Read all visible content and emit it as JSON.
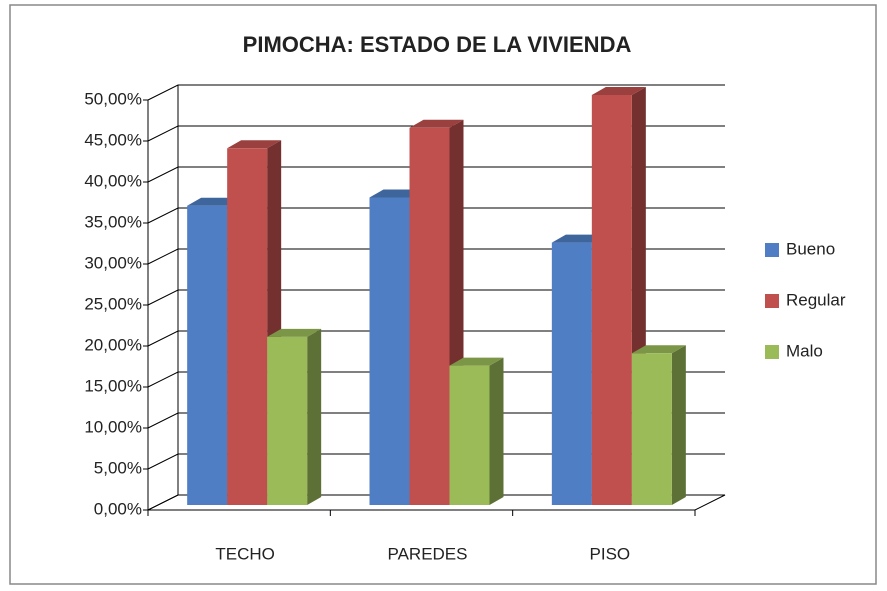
{
  "chart_data": {
    "type": "bar3d",
    "title": "PIMOCHA: ESTADO DE LA VIVIENDA",
    "categories": [
      "TECHO",
      "PAREDES",
      "PISO"
    ],
    "series": [
      {
        "name": "Bueno",
        "color": "#4f7ec4",
        "values": [
          36.5,
          37.5,
          32
        ]
      },
      {
        "name": "Regular",
        "color": "#c0504d",
        "values": [
          43.5,
          46,
          50
        ]
      },
      {
        "name": "Malo",
        "color": "#9bbb59",
        "values": [
          20.5,
          17,
          18.5
        ]
      }
    ],
    "ylim": [
      0,
      50
    ],
    "yticks": [
      {
        "value": 0,
        "label": "0,00%"
      },
      {
        "value": 5,
        "label": "5,00%"
      },
      {
        "value": 10,
        "label": "10,00%"
      },
      {
        "value": 15,
        "label": "15,00%"
      },
      {
        "value": 20,
        "label": "20,00%"
      },
      {
        "value": 25,
        "label": "25,00%"
      },
      {
        "value": 30,
        "label": "30,00%"
      },
      {
        "value": 35,
        "label": "35,00%"
      },
      {
        "value": 40,
        "label": "40,00%"
      },
      {
        "value": 45,
        "label": "45,00%"
      },
      {
        "value": 50,
        "label": "50,00%"
      }
    ],
    "grid": true,
    "legend": "right"
  }
}
